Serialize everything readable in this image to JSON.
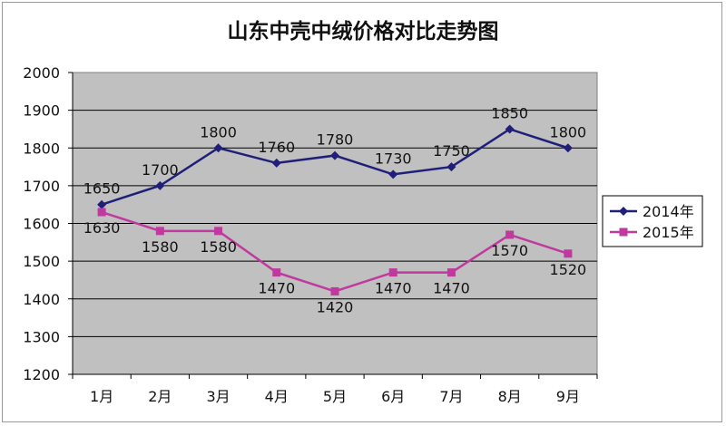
{
  "chart_data": {
    "type": "line",
    "title": "山东中壳中绒价格对比走势图",
    "categories": [
      "1月",
      "2月",
      "3月",
      "4月",
      "5月",
      "6月",
      "7月",
      "8月",
      "9月"
    ],
    "series": [
      {
        "name": "2014年",
        "values": [
          1650,
          1700,
          1800,
          1760,
          1780,
          1730,
          1750,
          1850,
          1800
        ],
        "color": "#1f1f7a",
        "marker": "diamond"
      },
      {
        "name": "2015年",
        "values": [
          1630,
          1580,
          1580,
          1470,
          1420,
          1470,
          1470,
          1570,
          1520
        ],
        "color": "#c0399f",
        "marker": "square"
      }
    ],
    "ylim": [
      1200,
      2000
    ],
    "yticks": [
      1200,
      1300,
      1400,
      1500,
      1600,
      1700,
      1800,
      1900,
      2000
    ],
    "grid": true,
    "legend_position": "right",
    "plot_background": "#c0c0c0"
  }
}
